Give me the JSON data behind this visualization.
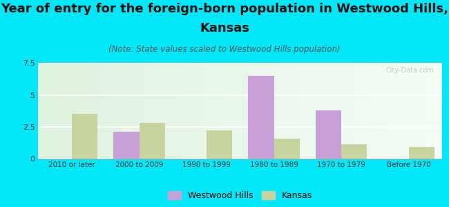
{
  "title_line1": "Year of entry for the foreign-born population in Westwood Hills,",
  "title_line2": "Kansas",
  "subtitle": "(Note: State values scaled to Westwood Hills population)",
  "categories": [
    "2010 or later",
    "2000 to 2009",
    "1990 to 1999",
    "1980 to 1989",
    "1970 to 1979",
    "Before 1970"
  ],
  "westwood_hills": [
    0,
    2.1,
    0,
    6.5,
    3.8,
    0
  ],
  "kansas": [
    3.5,
    2.8,
    2.2,
    1.55,
    1.1,
    0.9
  ],
  "westwood_color": "#c8a0d8",
  "kansas_color": "#c8d4a0",
  "ylim": [
    0,
    7.5
  ],
  "yticks": [
    0,
    2.5,
    5,
    7.5
  ],
  "background_outer": "#00e8f8",
  "title_fontsize": 13,
  "subtitle_fontsize": 8.5,
  "bar_width": 0.38,
  "watermark": "City-Data.com",
  "legend_label1": "Westwood Hills",
  "legend_label2": "Kansas"
}
